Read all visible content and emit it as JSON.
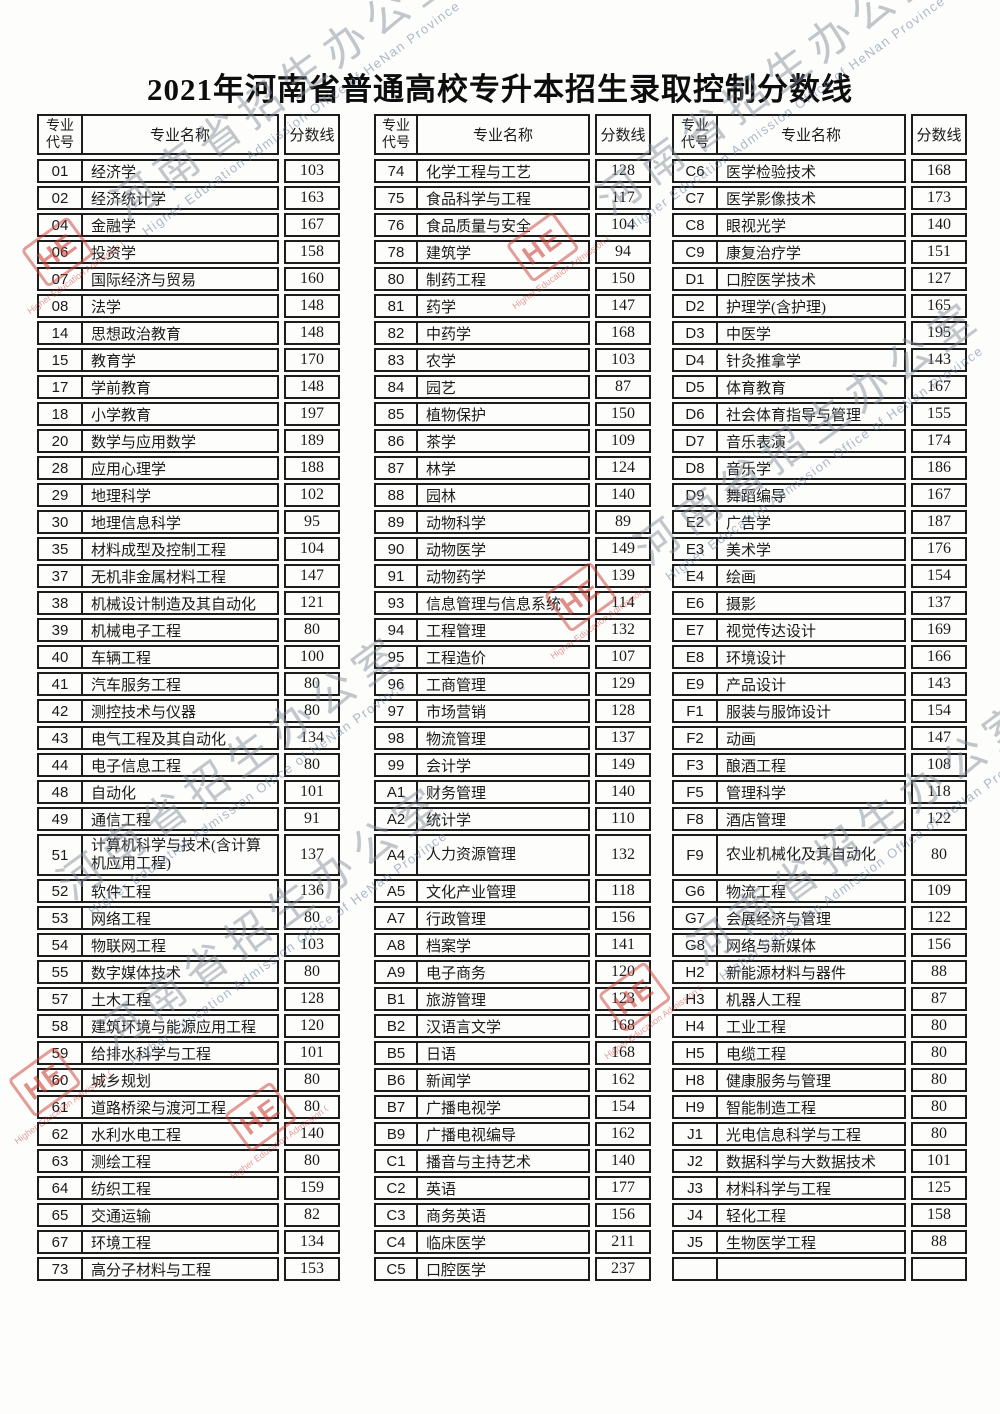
{
  "title": "2021年河南省普通高校专升本招生录取控制分数线",
  "headers": {
    "code": "专业代号",
    "name": "专业名称",
    "score": "分数线"
  },
  "watermark": {
    "cn": "河南省招生办公室",
    "en": "Higher Education Admission Office of HeNan Province",
    "logo": "HE",
    "red": "#c93e34",
    "gray": "#808a96"
  },
  "tables": [
    {
      "rows": [
        {
          "code": "01",
          "name": "经济学",
          "score": "103"
        },
        {
          "code": "02",
          "name": "经济统计学",
          "score": "163"
        },
        {
          "code": "04",
          "name": "金融学",
          "score": "167"
        },
        {
          "code": "06",
          "name": "投资学",
          "score": "158"
        },
        {
          "code": "07",
          "name": "国际经济与贸易",
          "score": "160"
        },
        {
          "code": "08",
          "name": "法学",
          "score": "148"
        },
        {
          "code": "14",
          "name": "思想政治教育",
          "score": "148"
        },
        {
          "code": "15",
          "name": "教育学",
          "score": "170"
        },
        {
          "code": "17",
          "name": "学前教育",
          "score": "148"
        },
        {
          "code": "18",
          "name": "小学教育",
          "score": "197"
        },
        {
          "code": "20",
          "name": "数学与应用数学",
          "score": "189"
        },
        {
          "code": "28",
          "name": "应用心理学",
          "score": "188"
        },
        {
          "code": "29",
          "name": "地理科学",
          "score": "102"
        },
        {
          "code": "30",
          "name": "地理信息科学",
          "score": "95"
        },
        {
          "code": "35",
          "name": "材料成型及控制工程",
          "score": "104"
        },
        {
          "code": "37",
          "name": "无机非金属材料工程",
          "score": "147"
        },
        {
          "code": "38",
          "name": "机械设计制造及其自动化",
          "score": "121"
        },
        {
          "code": "39",
          "name": "机械电子工程",
          "score": "80"
        },
        {
          "code": "40",
          "name": "车辆工程",
          "score": "100"
        },
        {
          "code": "41",
          "name": "汽车服务工程",
          "score": "80"
        },
        {
          "code": "42",
          "name": "测控技术与仪器",
          "score": "80"
        },
        {
          "code": "43",
          "name": "电气工程及其自动化",
          "score": "134"
        },
        {
          "code": "44",
          "name": "电子信息工程",
          "score": "80"
        },
        {
          "code": "48",
          "name": "自动化",
          "score": "101"
        },
        {
          "code": "49",
          "name": "通信工程",
          "score": "91"
        },
        {
          "code": "51",
          "name": "计算机科学与技术(含计算机应用工程)",
          "score": "137",
          "tall": true
        },
        {
          "code": "52",
          "name": "软件工程",
          "score": "136"
        },
        {
          "code": "53",
          "name": "网络工程",
          "score": "80"
        },
        {
          "code": "54",
          "name": "物联网工程",
          "score": "103"
        },
        {
          "code": "55",
          "name": "数字媒体技术",
          "score": "80"
        },
        {
          "code": "57",
          "name": "土木工程",
          "score": "128"
        },
        {
          "code": "58",
          "name": "建筑环境与能源应用工程",
          "score": "120"
        },
        {
          "code": "59",
          "name": "给排水科学与工程",
          "score": "101"
        },
        {
          "code": "60",
          "name": "城乡规划",
          "score": "80"
        },
        {
          "code": "61",
          "name": "道路桥梁与渡河工程",
          "score": "80"
        },
        {
          "code": "62",
          "name": "水利水电工程",
          "score": "140"
        },
        {
          "code": "63",
          "name": "测绘工程",
          "score": "80"
        },
        {
          "code": "64",
          "name": "纺织工程",
          "score": "159"
        },
        {
          "code": "65",
          "name": "交通运输",
          "score": "82"
        },
        {
          "code": "67",
          "name": "环境工程",
          "score": "134"
        },
        {
          "code": "73",
          "name": "高分子材料与工程",
          "score": "153"
        }
      ]
    },
    {
      "rows": [
        {
          "code": "74",
          "name": "化学工程与工艺",
          "score": "128"
        },
        {
          "code": "75",
          "name": "食品科学与工程",
          "score": "117"
        },
        {
          "code": "76",
          "name": "食品质量与安全",
          "score": "104"
        },
        {
          "code": "78",
          "name": "建筑学",
          "score": "94"
        },
        {
          "code": "80",
          "name": "制药工程",
          "score": "150"
        },
        {
          "code": "81",
          "name": "药学",
          "score": "147"
        },
        {
          "code": "82",
          "name": "中药学",
          "score": "168"
        },
        {
          "code": "83",
          "name": "农学",
          "score": "103"
        },
        {
          "code": "84",
          "name": "园艺",
          "score": "87"
        },
        {
          "code": "85",
          "name": "植物保护",
          "score": "150"
        },
        {
          "code": "86",
          "name": "茶学",
          "score": "109"
        },
        {
          "code": "87",
          "name": "林学",
          "score": "124"
        },
        {
          "code": "88",
          "name": "园林",
          "score": "140"
        },
        {
          "code": "89",
          "name": "动物科学",
          "score": "89"
        },
        {
          "code": "90",
          "name": "动物医学",
          "score": "149"
        },
        {
          "code": "91",
          "name": "动物药学",
          "score": "139"
        },
        {
          "code": "93",
          "name": "信息管理与信息系统",
          "score": "114"
        },
        {
          "code": "94",
          "name": "工程管理",
          "score": "132"
        },
        {
          "code": "95",
          "name": "工程造价",
          "score": "107"
        },
        {
          "code": "96",
          "name": "工商管理",
          "score": "129"
        },
        {
          "code": "97",
          "name": "市场营销",
          "score": "128"
        },
        {
          "code": "98",
          "name": "物流管理",
          "score": "137"
        },
        {
          "code": "99",
          "name": "会计学",
          "score": "149"
        },
        {
          "code": "A1",
          "name": "财务管理",
          "score": "140"
        },
        {
          "code": "A2",
          "name": "统计学",
          "score": "110"
        },
        {
          "code": "A4",
          "name": "人力资源管理",
          "score": "132",
          "tall": true
        },
        {
          "code": "A5",
          "name": "文化产业管理",
          "score": "118"
        },
        {
          "code": "A7",
          "name": "行政管理",
          "score": "156"
        },
        {
          "code": "A8",
          "name": "档案学",
          "score": "141"
        },
        {
          "code": "A9",
          "name": "电子商务",
          "score": "120"
        },
        {
          "code": "B1",
          "name": "旅游管理",
          "score": "123"
        },
        {
          "code": "B2",
          "name": "汉语言文学",
          "score": "168"
        },
        {
          "code": "B5",
          "name": "日语",
          "score": "168"
        },
        {
          "code": "B6",
          "name": "新闻学",
          "score": "162"
        },
        {
          "code": "B7",
          "name": "广播电视学",
          "score": "154"
        },
        {
          "code": "B9",
          "name": "广播电视编导",
          "score": "162"
        },
        {
          "code": "C1",
          "name": "播音与主持艺术",
          "score": "140"
        },
        {
          "code": "C2",
          "name": "英语",
          "score": "177"
        },
        {
          "code": "C3",
          "name": "商务英语",
          "score": "156"
        },
        {
          "code": "C4",
          "name": "临床医学",
          "score": "211"
        },
        {
          "code": "C5",
          "name": "口腔医学",
          "score": "237"
        }
      ]
    },
    {
      "rows": [
        {
          "code": "C6",
          "name": "医学检验技术",
          "score": "168"
        },
        {
          "code": "C7",
          "name": "医学影像技术",
          "score": "173"
        },
        {
          "code": "C8",
          "name": "眼视光学",
          "score": "140"
        },
        {
          "code": "C9",
          "name": "康复治疗学",
          "score": "151"
        },
        {
          "code": "D1",
          "name": "口腔医学技术",
          "score": "127"
        },
        {
          "code": "D2",
          "name": "护理学(含护理)",
          "score": "165"
        },
        {
          "code": "D3",
          "name": "中医学",
          "score": "195"
        },
        {
          "code": "D4",
          "name": "针灸推拿学",
          "score": "143"
        },
        {
          "code": "D5",
          "name": "体育教育",
          "score": "167"
        },
        {
          "code": "D6",
          "name": "社会体育指导与管理",
          "score": "155"
        },
        {
          "code": "D7",
          "name": "音乐表演",
          "score": "174"
        },
        {
          "code": "D8",
          "name": "音乐学",
          "score": "186"
        },
        {
          "code": "D9",
          "name": "舞蹈编导",
          "score": "167"
        },
        {
          "code": "E2",
          "name": "广告学",
          "score": "187"
        },
        {
          "code": "E3",
          "name": "美术学",
          "score": "176"
        },
        {
          "code": "E4",
          "name": "绘画",
          "score": "154"
        },
        {
          "code": "E6",
          "name": "摄影",
          "score": "137"
        },
        {
          "code": "E7",
          "name": "视觉传达设计",
          "score": "169"
        },
        {
          "code": "E8",
          "name": "环境设计",
          "score": "166"
        },
        {
          "code": "E9",
          "name": "产品设计",
          "score": "143"
        },
        {
          "code": "F1",
          "name": "服装与服饰设计",
          "score": "154"
        },
        {
          "code": "F2",
          "name": "动画",
          "score": "147"
        },
        {
          "code": "F3",
          "name": "酿酒工程",
          "score": "108"
        },
        {
          "code": "F5",
          "name": "管理科学",
          "score": "118"
        },
        {
          "code": "F8",
          "name": "酒店管理",
          "score": "122"
        },
        {
          "code": "F9",
          "name": "农业机械化及其自动化",
          "score": "80",
          "tall": true
        },
        {
          "code": "G6",
          "name": "物流工程",
          "score": "109"
        },
        {
          "code": "G7",
          "name": "会展经济与管理",
          "score": "122"
        },
        {
          "code": "G8",
          "name": "网络与新媒体",
          "score": "156"
        },
        {
          "code": "H2",
          "name": "新能源材料与器件",
          "score": "88"
        },
        {
          "code": "H3",
          "name": "机器人工程",
          "score": "87"
        },
        {
          "code": "H4",
          "name": "工业工程",
          "score": "80"
        },
        {
          "code": "H5",
          "name": "电缆工程",
          "score": "80"
        },
        {
          "code": "H8",
          "name": "健康服务与管理",
          "score": "80"
        },
        {
          "code": "H9",
          "name": "智能制造工程",
          "score": "80"
        },
        {
          "code": "J1",
          "name": "光电信息科学与工程",
          "score": "80"
        },
        {
          "code": "J2",
          "name": "数据科学与大数据技术",
          "score": "101"
        },
        {
          "code": "J3",
          "name": "材料科学与工程",
          "score": "125"
        },
        {
          "code": "J4",
          "name": "轻化工程",
          "score": "158"
        },
        {
          "code": "J5",
          "name": "生物医学工程",
          "score": "88"
        },
        {
          "code": "",
          "name": "",
          "score": ""
        }
      ]
    }
  ]
}
